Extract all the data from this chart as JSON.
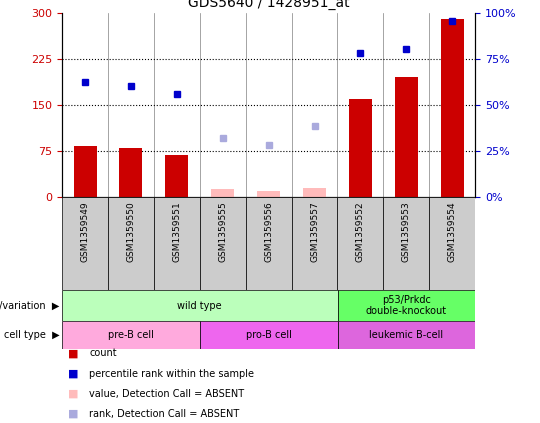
{
  "title": "GDS5640 / 1428951_at",
  "samples": [
    "GSM1359549",
    "GSM1359550",
    "GSM1359551",
    "GSM1359555",
    "GSM1359556",
    "GSM1359557",
    "GSM1359552",
    "GSM1359553",
    "GSM1359554"
  ],
  "bar_values": [
    82,
    79,
    68,
    null,
    null,
    null,
    160,
    195,
    290
  ],
  "bar_absent_values": [
    null,
    null,
    null,
    12,
    10,
    14,
    null,
    null,
    null
  ],
  "dot_values": [
    187,
    180,
    168,
    null,
    null,
    null,
    235,
    240,
    287
  ],
  "dot_absent_values": [
    null,
    null,
    null,
    95,
    85,
    115,
    null,
    null,
    null
  ],
  "bar_color": "#cc0000",
  "bar_absent_color": "#ffbbbb",
  "dot_color": "#0000cc",
  "dot_absent_color": "#aaaadd",
  "ylim_left": [
    0,
    300
  ],
  "ylim_right": [
    0,
    100
  ],
  "yticks_left": [
    0,
    75,
    150,
    225,
    300
  ],
  "ytick_vals_right": [
    0,
    25,
    50,
    75,
    100
  ],
  "hlines": [
    75,
    150,
    225
  ],
  "genotype_groups": [
    {
      "label": "wild type",
      "start": 0,
      "end": 6,
      "color": "#bbffbb"
    },
    {
      "label": "p53/Prkdc\ndouble-knockout",
      "start": 6,
      "end": 9,
      "color": "#66ff66"
    }
  ],
  "celltype_groups": [
    {
      "label": "pre-B cell",
      "start": 0,
      "end": 3,
      "color": "#ffaadd"
    },
    {
      "label": "pro-B cell",
      "start": 3,
      "end": 6,
      "color": "#ee66ee"
    },
    {
      "label": "leukemic B-cell",
      "start": 6,
      "end": 9,
      "color": "#dd66dd"
    }
  ],
  "legend_items": [
    {
      "label": "count",
      "color": "#cc0000"
    },
    {
      "label": "percentile rank within the sample",
      "color": "#0000cc"
    },
    {
      "label": "value, Detection Call = ABSENT",
      "color": "#ffbbbb"
    },
    {
      "label": "rank, Detection Call = ABSENT",
      "color": "#aaaadd"
    }
  ],
  "title_fontsize": 10,
  "tick_label_color_left": "#cc0000",
  "tick_label_color_right": "#0000cc",
  "xtick_bg_color": "#cccccc",
  "plot_bg_color": "#ffffff"
}
